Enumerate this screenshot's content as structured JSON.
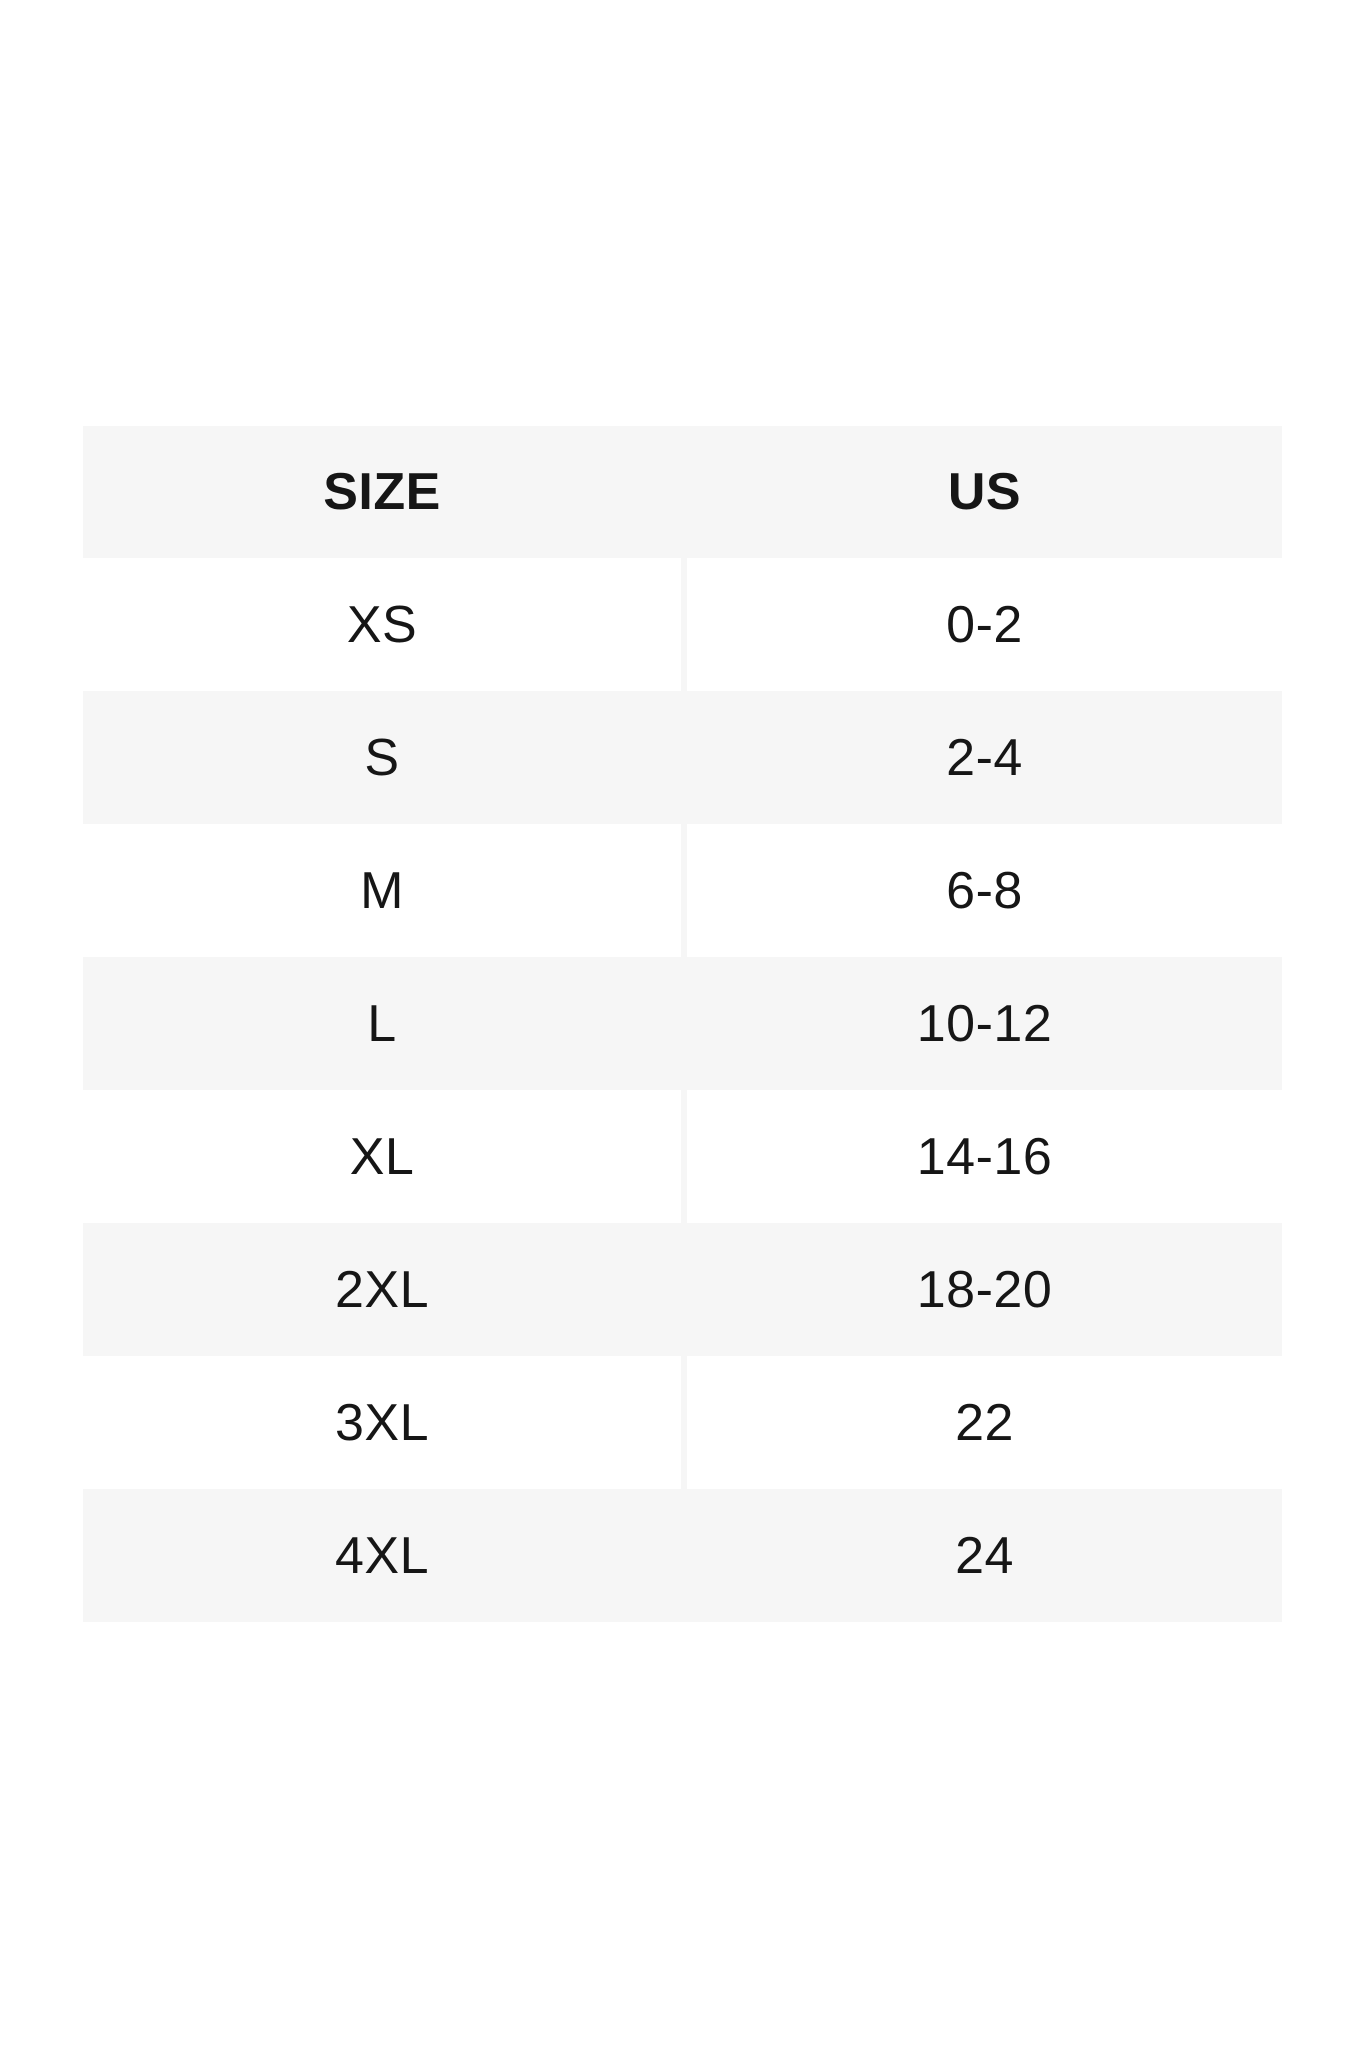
{
  "page": {
    "background_color": "#ffffff",
    "text_color": "#161616",
    "row_shade_color": "#f6f6f6"
  },
  "size_chart": {
    "columns": [
      "SIZE",
      "US"
    ],
    "rows": [
      {
        "size": "XS",
        "us": "0-2"
      },
      {
        "size": "S",
        "us": "2-4"
      },
      {
        "size": "M",
        "us": "6-8"
      },
      {
        "size": "L",
        "us": "10-12"
      },
      {
        "size": "XL",
        "us": "14-16"
      },
      {
        "size": "2XL",
        "us": "18-20"
      },
      {
        "size": "3XL",
        "us": "22"
      },
      {
        "size": "4XL",
        "us": "24"
      }
    ]
  }
}
